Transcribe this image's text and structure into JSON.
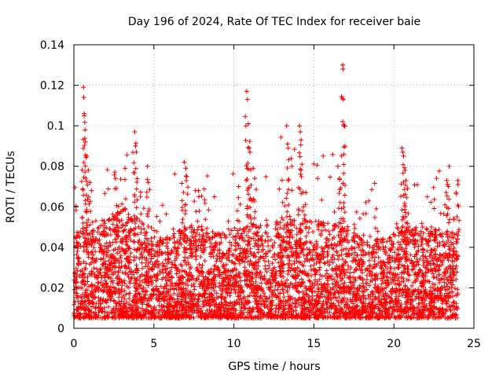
{
  "chart_data": {
    "type": "scatter",
    "title": "Day 196 of 2024, Rate Of TEC Index for receiver baie",
    "xlabel": "GPS time / hours",
    "ylabel": "ROTI / TECUs",
    "xlim": [
      0,
      25
    ],
    "ylim": [
      0,
      0.14
    ],
    "x_ticks": [
      0,
      5,
      10,
      15,
      20,
      25
    ],
    "x_tick_labels": [
      "0",
      "5",
      "10",
      "15",
      "20",
      "25"
    ],
    "y_ticks": [
      0,
      0.02,
      0.04,
      0.06,
      0.08,
      0.1,
      0.12,
      0.14
    ],
    "y_tick_labels": [
      "0",
      "0.02",
      "0.04",
      "0.06",
      "0.08",
      "0.1",
      "0.12",
      "0.14"
    ],
    "grid": true,
    "marker": "+",
    "marker_color": "#ff0000",
    "dense_band": {
      "x_range": [
        0,
        24
      ],
      "typical_y_range": [
        0.005,
        0.035
      ],
      "note": "thousands of points concentrated between 0.005 and 0.035 TECU/s across the whole day"
    },
    "series": [
      {
        "name": "ROTI",
        "peaks": [
          {
            "x": 0.6,
            "y": 0.119
          },
          {
            "x": 0.62,
            "y": 0.114
          },
          {
            "x": 0.65,
            "y": 0.106
          },
          {
            "x": 0.7,
            "y": 0.098
          },
          {
            "x": 0.72,
            "y": 0.092
          },
          {
            "x": 0.8,
            "y": 0.085
          },
          {
            "x": 0.9,
            "y": 0.078
          },
          {
            "x": 1.0,
            "y": 0.072
          },
          {
            "x": 1.1,
            "y": 0.068
          },
          {
            "x": 2.6,
            "y": 0.074
          },
          {
            "x": 3.2,
            "y": 0.079
          },
          {
            "x": 3.8,
            "y": 0.097
          },
          {
            "x": 3.85,
            "y": 0.09
          },
          {
            "x": 3.9,
            "y": 0.087
          },
          {
            "x": 4.6,
            "y": 0.08
          },
          {
            "x": 4.65,
            "y": 0.072
          },
          {
            "x": 6.9,
            "y": 0.082
          },
          {
            "x": 7.0,
            "y": 0.079
          },
          {
            "x": 7.05,
            "y": 0.075
          },
          {
            "x": 7.6,
            "y": 0.068
          },
          {
            "x": 10.3,
            "y": 0.07
          },
          {
            "x": 10.8,
            "y": 0.117
          },
          {
            "x": 10.85,
            "y": 0.113
          },
          {
            "x": 10.9,
            "y": 0.101
          },
          {
            "x": 10.95,
            "y": 0.089
          },
          {
            "x": 11.0,
            "y": 0.087
          },
          {
            "x": 11.2,
            "y": 0.079
          },
          {
            "x": 11.3,
            "y": 0.074
          },
          {
            "x": 13.3,
            "y": 0.1
          },
          {
            "x": 13.35,
            "y": 0.091
          },
          {
            "x": 13.4,
            "y": 0.073
          },
          {
            "x": 14.1,
            "y": 0.1
          },
          {
            "x": 14.15,
            "y": 0.097
          },
          {
            "x": 14.2,
            "y": 0.093
          },
          {
            "x": 14.25,
            "y": 0.081
          },
          {
            "x": 14.5,
            "y": 0.067
          },
          {
            "x": 16.5,
            "y": 0.08
          },
          {
            "x": 16.6,
            "y": 0.074
          },
          {
            "x": 16.8,
            "y": 0.13
          },
          {
            "x": 16.82,
            "y": 0.128
          },
          {
            "x": 16.85,
            "y": 0.113
          },
          {
            "x": 16.9,
            "y": 0.1
          },
          {
            "x": 17.5,
            "y": 0.047
          },
          {
            "x": 18.9,
            "y": 0.059
          },
          {
            "x": 20.5,
            "y": 0.089
          },
          {
            "x": 20.55,
            "y": 0.087
          },
          {
            "x": 20.6,
            "y": 0.085
          },
          {
            "x": 20.7,
            "y": 0.078
          },
          {
            "x": 20.75,
            "y": 0.073
          },
          {
            "x": 20.85,
            "y": 0.069
          },
          {
            "x": 21.8,
            "y": 0.05
          },
          {
            "x": 23.3,
            "y": 0.073
          },
          {
            "x": 23.35,
            "y": 0.071
          },
          {
            "x": 23.4,
            "y": 0.07
          },
          {
            "x": 24.0,
            "y": 0.073
          },
          {
            "x": 24.0,
            "y": 0.071
          }
        ]
      }
    ]
  }
}
